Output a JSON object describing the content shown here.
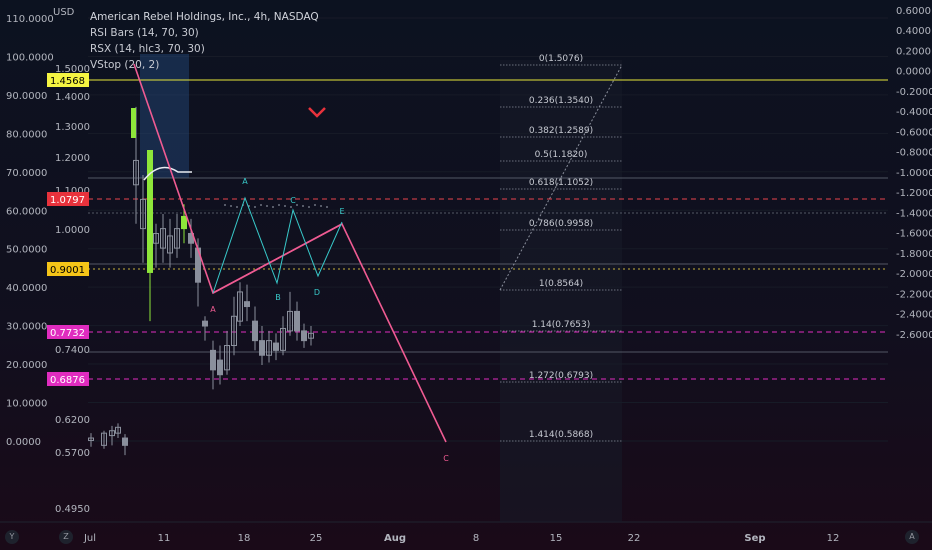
{
  "header": {
    "axis_unit": "USD",
    "title": "American Rebel Holdings, Inc., 4h, NASDAQ",
    "indicators": [
      "RSI Bars (14, 70, 30)",
      "RSX (14, hlc3, 70, 30)",
      "VStop (20, 2)"
    ]
  },
  "colors": {
    "background": "#0c0e18",
    "hline": "#e6e63a",
    "red_level": "#e8434e",
    "magenta_level": "#e02cbf",
    "zigzag_main": "#ef5b92",
    "zigzag_small": "#38c9c9",
    "candles": "#8a8f9c",
    "green_bar": "#8ee63a",
    "fib": "#6a6f7c"
  },
  "bottom_buttons": [
    "Y",
    "Z",
    "A"
  ],
  "chart_data": {
    "type": "candlestick",
    "left_axis": {
      "ticks": [
        "110.0000",
        "100.0000",
        "90.0000",
        "80.0000",
        "70.0000",
        "60.0000",
        "50.0000",
        "40.0000",
        "30.0000",
        "20.0000",
        "10.0000",
        "0.0000"
      ]
    },
    "inner_axis": {
      "ticks": [
        "1.5000",
        "1.4000",
        "1.3000",
        "1.2000",
        "1.1000",
        "1.0000",
        "0.7400",
        "0.6200",
        "0.5700",
        "0.4950"
      ]
    },
    "right_axis": {
      "ticks": [
        "0.6000",
        "0.4000",
        "0.2000",
        "0.0000",
        "-0.2000",
        "-0.4000",
        "-0.6000",
        "-0.8000",
        "-1.0000",
        "-1.2000",
        "-1.4000",
        "-1.6000",
        "-1.8000",
        "-2.0000",
        "-2.2000",
        "-2.4000",
        "-2.6000"
      ]
    },
    "x_ticks": [
      "Jul",
      "11",
      "18",
      "25",
      "Aug",
      "8",
      "15",
      "22",
      "Sep",
      "12"
    ],
    "price_labels": [
      {
        "value": "1.4568",
        "color": "#f5f542",
        "text_color": "#000000"
      },
      {
        "value": "1.0797",
        "color": "#e8323c",
        "text_color": "#ffffff"
      },
      {
        "value": "0.9001",
        "color": "#f5c518",
        "text_color": "#000000"
      },
      {
        "value": "0.7732",
        "color": "#e02cbf",
        "text_color": "#ffffff"
      },
      {
        "value": "0.6876",
        "color": "#e02cbf",
        "text_color": "#ffffff"
      }
    ],
    "fib_levels": [
      {
        "ratio": "0",
        "price": "1.5076",
        "label": "0(1.5076)"
      },
      {
        "ratio": "0.236",
        "price": "1.3540",
        "label": "0.236(1.3540)"
      },
      {
        "ratio": "0.382",
        "price": "1.2589",
        "label": "0.382(1.2589)"
      },
      {
        "ratio": "0.5",
        "price": "1.1820",
        "label": "0.5(1.1820)"
      },
      {
        "ratio": "0.618",
        "price": "1.1052",
        "label": "0.618(1.1052)"
      },
      {
        "ratio": "0.786",
        "price": "0.9958",
        "label": "0.786(0.9958)"
      },
      {
        "ratio": "1",
        "price": "0.8564",
        "label": "1(0.8564)"
      },
      {
        "ratio": "1.14",
        "price": "0.7653",
        "label": "1.14(0.7653)"
      },
      {
        "ratio": "1.272",
        "price": "0.6793",
        "label": "1.272(0.6793)"
      },
      {
        "ratio": "1.414",
        "price": "0.5868",
        "label": "1.414(0.5868)"
      }
    ],
    "pattern_labels": [
      "A",
      "B",
      "C",
      "D",
      "E"
    ],
    "main_wave_labels": [
      "A",
      "C"
    ]
  }
}
